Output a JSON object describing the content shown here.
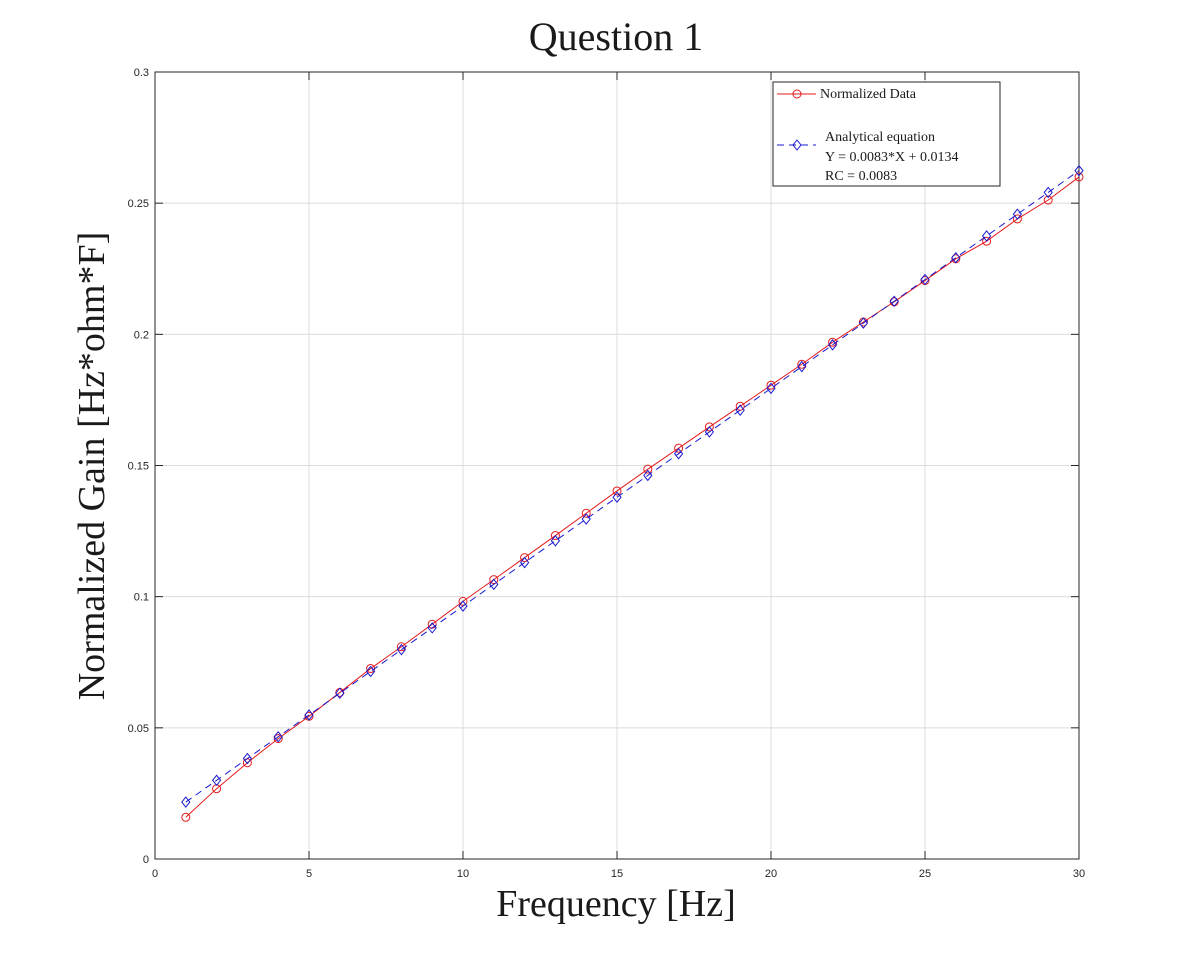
{
  "chart_data": {
    "type": "line",
    "title": "Question 1",
    "xlabel": "Frequency [Hz]",
    "ylabel": "Normalized Gain [Hz*ohm*F]",
    "xlim": [
      0,
      30
    ],
    "ylim": [
      0,
      0.3
    ],
    "xticks": [
      0,
      5,
      10,
      15,
      20,
      25,
      30
    ],
    "xtick_labels": [
      "0",
      "5",
      "10",
      "15",
      "20",
      "25",
      "30"
    ],
    "yticks": [
      0,
      0.05,
      0.1,
      0.15,
      0.2,
      0.25,
      0.3
    ],
    "ytick_labels": [
      "0",
      "0.05",
      "0.1",
      "0.15",
      "0.2",
      "0.25",
      "0.3"
    ],
    "grid": true,
    "legend_position": "top-right",
    "x": [
      1,
      2,
      3,
      4,
      5,
      6,
      7,
      8,
      9,
      10,
      11,
      12,
      13,
      14,
      15,
      16,
      17,
      18,
      19,
      20,
      21,
      22,
      23,
      24,
      25,
      26,
      27,
      28,
      29,
      30
    ],
    "series": [
      {
        "name": "Normalized Data",
        "color": "#e41a1c",
        "marker": "circle",
        "line_style": "solid",
        "values": [
          0.0159,
          0.0268,
          0.0367,
          0.0459,
          0.0544,
          0.0635,
          0.0726,
          0.0809,
          0.0895,
          0.0982,
          0.1065,
          0.1149,
          0.1233,
          0.1318,
          0.1403,
          0.1486,
          0.1566,
          0.1647,
          0.1726,
          0.1806,
          0.1886,
          0.197,
          0.2047,
          0.2124,
          0.2205,
          0.2288,
          0.2355,
          0.244,
          0.2512,
          0.26
        ]
      },
      {
        "name": "Analytical equation",
        "legend_lines": [
          "Analytical equation",
          "Y = 0.0083*X + 0.0134",
          "RC = 0.0083"
        ],
        "color": "#1a1ad0",
        "marker": "diamond",
        "line_style": "dashed",
        "values": [
          0.0217,
          0.03,
          0.0383,
          0.0466,
          0.0549,
          0.0632,
          0.0715,
          0.0798,
          0.0881,
          0.0964,
          0.1047,
          0.113,
          0.1213,
          0.1296,
          0.1379,
          0.1462,
          0.1545,
          0.1628,
          0.1711,
          0.1794,
          0.1877,
          0.196,
          0.2043,
          0.2126,
          0.2209,
          0.2292,
          0.2375,
          0.2458,
          0.2541,
          0.2624
        ]
      }
    ]
  }
}
